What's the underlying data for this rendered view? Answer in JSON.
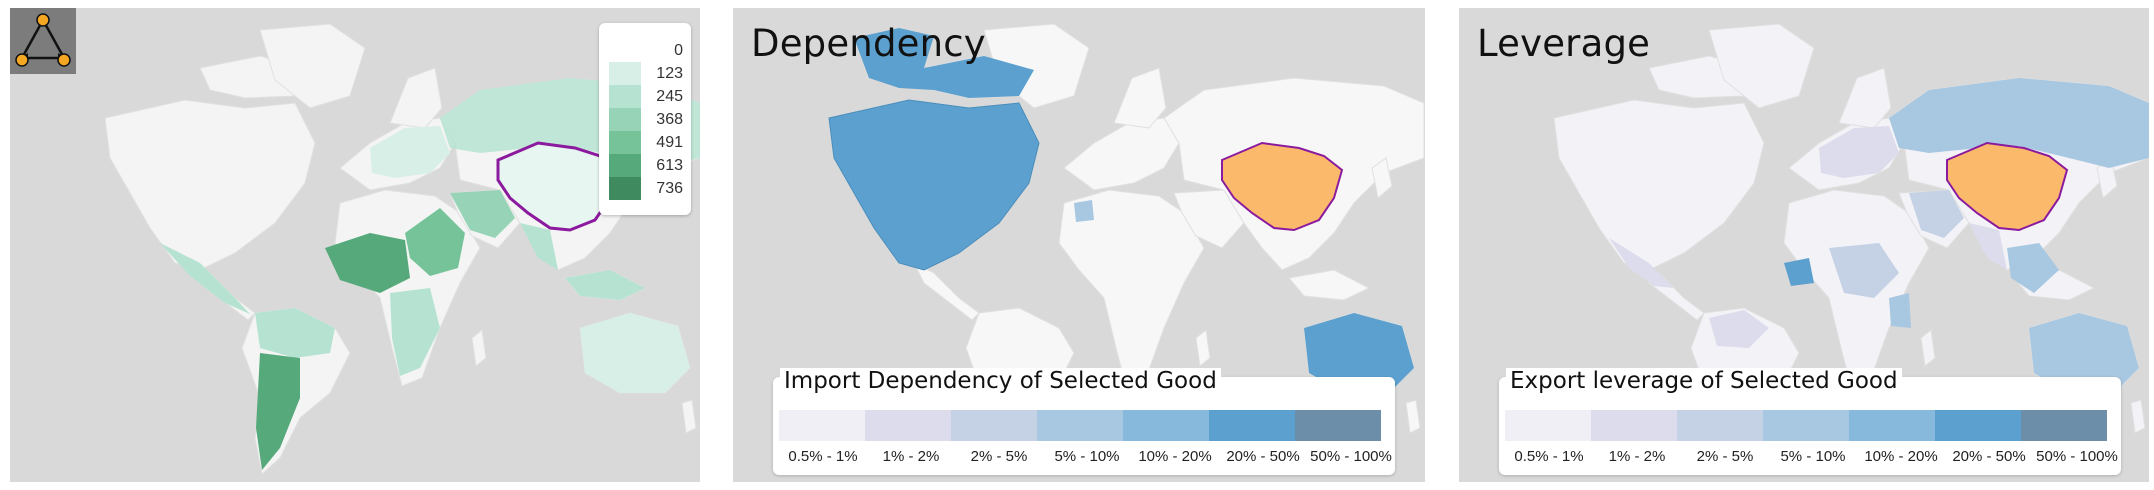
{
  "panels": {
    "count": {
      "legend": {
        "labels": [
          "0",
          "123",
          "245",
          "368",
          "491",
          "613",
          "736"
        ],
        "colors": [
          "#ffffff",
          "#d7efe6",
          "#b6e3d1",
          "#97d4b7",
          "#76c39a",
          "#56a97a",
          "#3f8a5f"
        ]
      },
      "selected_country_outline": "#8b1a9e"
    },
    "dependency": {
      "title": "Dependency",
      "legend_title": "Import Dependency of Selected Good",
      "legend_labels": [
        "0.5% - 1%",
        "1% - 2%",
        "2% - 5%",
        "5% - 10%",
        "10% - 20%",
        "20% - 50%",
        "50% - 100%"
      ],
      "legend_colors": [
        "#f1eff6",
        "#dcdcec",
        "#c5d2e6",
        "#a8c7e1",
        "#86b9dc",
        "#5ba0cf",
        "#6d8ea9"
      ],
      "selected_country_color": "#fbb96b"
    },
    "leverage": {
      "title": "Leverage",
      "legend_title": "Export leverage of Selected Good",
      "legend_labels": [
        "0.5% - 1%",
        "1% - 2%",
        "2% - 5%",
        "5% - 10%",
        "10% - 20%",
        "20% - 50%",
        "50% - 100%"
      ],
      "legend_colors": [
        "#f1eff6",
        "#dcdcec",
        "#c5d2e6",
        "#a8c7e1",
        "#86b9dc",
        "#5ba0cf",
        "#6d8ea9"
      ],
      "selected_country_color": "#fbb96b"
    }
  }
}
